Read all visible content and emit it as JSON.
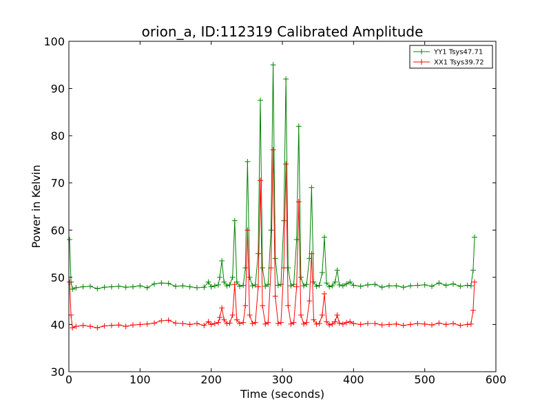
{
  "chart_data": {
    "type": "line",
    "title": "orion_a, ID:112319 Calibrated Amplitude",
    "xlabel": "Time (seconds)",
    "ylabel": "Power in Kelvin",
    "xlim": [
      0,
      600
    ],
    "ylim": [
      30,
      100
    ],
    "x_ticks": [
      0,
      100,
      200,
      300,
      400,
      500,
      600
    ],
    "y_ticks": [
      30,
      40,
      50,
      60,
      70,
      80,
      90,
      100
    ],
    "x_tick_labels": [
      "0",
      "100",
      "200",
      "300",
      "400",
      "500",
      "600"
    ],
    "y_tick_labels": [
      "30",
      "40",
      "50",
      "60",
      "70",
      "80",
      "90",
      "100"
    ],
    "grid": false,
    "legend_position": "top-right",
    "marker": "+",
    "series": [
      {
        "name": "YY1 Tsys47.71",
        "color": "#008000",
        "x": [
          1,
          3,
          5,
          10,
          20,
          30,
          40,
          50,
          60,
          70,
          80,
          90,
          100,
          110,
          120,
          130,
          140,
          150,
          160,
          170,
          180,
          190,
          196,
          200,
          205,
          210,
          212,
          215,
          218,
          222,
          226,
          230,
          233,
          236,
          240,
          245,
          248,
          251,
          254,
          258,
          262,
          266,
          269,
          272,
          276,
          280,
          284,
          287,
          290,
          294,
          298,
          302,
          305,
          308,
          312,
          316,
          320,
          323,
          326,
          330,
          334,
          338,
          341,
          344,
          348,
          352,
          356,
          359,
          362,
          366,
          370,
          374,
          377,
          380,
          385,
          390,
          395,
          400,
          410,
          420,
          430,
          440,
          450,
          460,
          470,
          480,
          490,
          500,
          510,
          520,
          530,
          540,
          550,
          560,
          565,
          568,
          570
        ],
        "values": [
          58,
          49,
          47.5,
          47.8,
          48,
          48.1,
          47.6,
          47.9,
          48,
          48.1,
          47.9,
          48,
          48.2,
          47.8,
          48.6,
          48.8,
          48.7,
          48.1,
          48.2,
          48,
          47.8,
          47.9,
          49,
          48,
          48.2,
          48.4,
          50,
          53.5,
          49,
          48.2,
          48.4,
          50,
          62,
          49,
          48.1,
          48.3,
          52,
          74.5,
          50,
          48.2,
          48.4,
          55,
          87.5,
          52,
          48.1,
          48.5,
          60,
          95,
          54,
          48.3,
          48.5,
          62,
          92,
          52,
          48.2,
          48.5,
          58,
          82,
          50,
          48.2,
          48.5,
          54,
          69,
          49,
          48.1,
          48.3,
          51,
          58.5,
          48.8,
          48,
          48.2,
          49,
          51.5,
          48.4,
          48.2,
          48.6,
          49,
          48.3,
          48.1,
          48.4,
          48.5,
          47.9,
          48.2,
          48.2,
          47.9,
          48.2,
          48.3,
          48.4,
          48.1,
          48.8,
          48.3,
          48.6,
          48.1,
          48.3,
          48.2,
          51.5,
          58.5
        ]
      },
      {
        "name": "XX1 Tsys39.72",
        "color": "#ff0000",
        "x": [
          1,
          3,
          5,
          10,
          20,
          30,
          40,
          50,
          60,
          70,
          80,
          90,
          100,
          110,
          120,
          130,
          140,
          150,
          160,
          170,
          180,
          190,
          196,
          200,
          205,
          210,
          212,
          215,
          218,
          222,
          226,
          230,
          233,
          236,
          240,
          245,
          248,
          251,
          254,
          258,
          262,
          266,
          269,
          272,
          276,
          280,
          284,
          287,
          290,
          294,
          298,
          302,
          305,
          308,
          312,
          316,
          320,
          323,
          326,
          330,
          334,
          338,
          341,
          344,
          348,
          352,
          356,
          359,
          362,
          366,
          370,
          374,
          377,
          380,
          385,
          390,
          395,
          400,
          410,
          420,
          430,
          440,
          450,
          460,
          470,
          480,
          490,
          500,
          510,
          520,
          530,
          540,
          550,
          560,
          565,
          568,
          570
        ],
        "values": [
          49,
          42,
          39.3,
          39.6,
          39.8,
          39.6,
          39.3,
          39.7,
          39.8,
          39.9,
          39.6,
          39.9,
          40,
          40.1,
          40.3,
          40.8,
          40.9,
          40.3,
          40.2,
          40,
          40.2,
          39.8,
          40.6,
          40,
          40.2,
          40.4,
          41.5,
          43.5,
          41,
          40.2,
          40.3,
          42,
          48.5,
          41,
          40.2,
          40.4,
          44,
          60,
          42,
          40.2,
          40.4,
          48,
          70.5,
          44,
          40.1,
          40.4,
          52,
          77,
          46,
          40.2,
          40.4,
          52,
          74,
          44,
          40.1,
          40.4,
          48,
          66,
          42,
          40.1,
          40.4,
          45,
          55,
          41,
          40.1,
          40.2,
          42,
          46.5,
          40.6,
          39.9,
          40.1,
          40.6,
          42,
          40.3,
          40.1,
          40.4,
          40.6,
          40.2,
          40,
          40.2,
          40.2,
          39.9,
          40,
          40.1,
          39.8,
          40,
          40.2,
          40.1,
          39.9,
          40.3,
          40,
          40.2,
          39.8,
          40,
          40.1,
          43,
          49
        ]
      }
    ]
  }
}
